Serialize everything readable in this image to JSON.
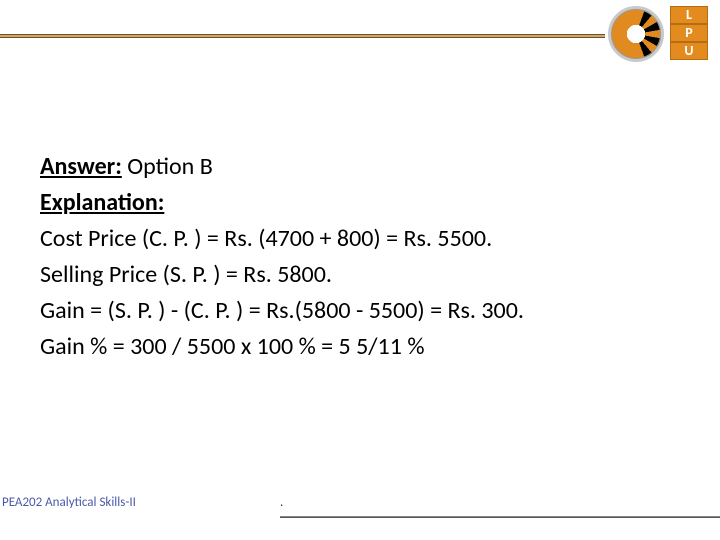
{
  "header": {
    "line_color": "#e9a33a",
    "logo_name": "institution-seal",
    "lpu_letters": [
      "L",
      "P",
      "U"
    ]
  },
  "content": {
    "answer_label": "Answer:",
    "answer_value": " Option B",
    "explanation_label": "Explanation:",
    "lines": [
      "Cost Price (C. P. ) = Rs. (4700 + 800) = Rs. 5500.",
      "Selling Price (S. P. ) = Rs. 5800.",
      "Gain = (S. P. ) - (C. P. ) = Rs.(5800 - 5500) = Rs. 300.",
      "Gain % = 300 / 5500 x 100 % = 5 5/11 %"
    ]
  },
  "footer": {
    "course": "PEA202 Analytical Skills-II",
    "dot": "."
  }
}
